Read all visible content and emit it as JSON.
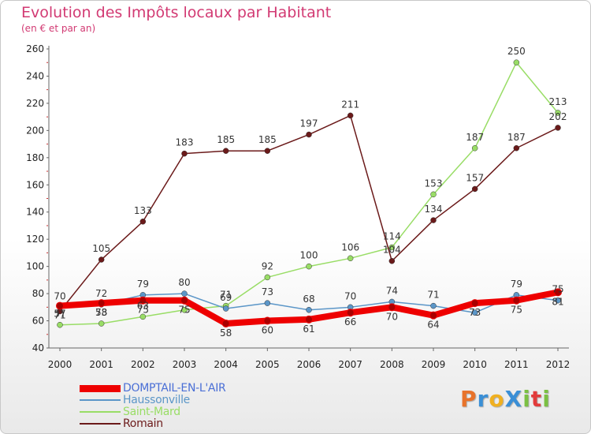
{
  "header": {
    "title": "Evolution des Impôts locaux par Habitant",
    "subtitle": "(en € et par an)"
  },
  "logo": {
    "text": "ProXiti",
    "letters": [
      "P",
      "r",
      "o",
      "X",
      "i",
      "t",
      "i"
    ],
    "colors": [
      "#e8732b",
      "#3a8fd6",
      "#f0b020",
      "#3a8fd6",
      "#7bc043",
      "#e23b3b",
      "#7bc043"
    ]
  },
  "chart_data": {
    "type": "line",
    "title": "Evolution des Impôts locaux par Habitant",
    "subtitle": "(en € et par an)",
    "xlabel": "",
    "ylabel": "",
    "x": [
      "2000",
      "2001",
      "2002",
      "2003",
      "2004",
      "2005",
      "2006",
      "2007",
      "2008",
      "2009",
      "2010",
      "2011",
      "2012"
    ],
    "ylim": [
      40,
      260
    ],
    "yticks": [
      40,
      60,
      80,
      100,
      120,
      140,
      160,
      180,
      200,
      220,
      240,
      260
    ],
    "grid": false,
    "legend_position": "bottom-left",
    "series": [
      {
        "name": "DOMPTAIL-EN-L'AIR",
        "color": "#ee0000",
        "values": [
          71,
          73,
          75,
          75,
          58,
          60,
          61,
          66,
          70,
          64,
          73,
          75,
          81
        ],
        "labels": [
          "71",
          "73",
          "75",
          "75",
          "58",
          "60",
          "61",
          "66",
          "70",
          "64",
          "73",
          "75",
          "81"
        ]
      },
      {
        "name": "Haussonville",
        "color": "#5b96c8",
        "values": [
          70,
          72,
          79,
          80,
          69,
          73,
          68,
          70,
          74,
          71,
          66,
          79,
          75
        ],
        "labels": [
          "70",
          "72",
          "79",
          "80",
          "69",
          "73",
          "68",
          "70",
          "74",
          "71",
          "",
          "79",
          "75"
        ]
      },
      {
        "name": "Saint-Mard",
        "color": "#99dd66",
        "values": [
          57,
          58,
          63,
          68,
          71,
          92,
          100,
          106,
          114,
          153,
          187,
          250,
          213
        ],
        "labels": [
          "57",
          "58",
          "63",
          "",
          "71",
          "92",
          "100",
          "106",
          "114",
          "153",
          "187",
          "250",
          "213"
        ]
      },
      {
        "name": "Romain",
        "color": "#6b1a1a",
        "values": [
          67,
          105,
          133,
          183,
          185,
          185,
          197,
          211,
          104,
          134,
          157,
          187,
          202
        ],
        "labels": [
          "",
          "105",
          "133",
          "183",
          "185",
          "185",
          "197",
          "211",
          "104",
          "134",
          "157",
          "187",
          "202"
        ]
      }
    ]
  }
}
